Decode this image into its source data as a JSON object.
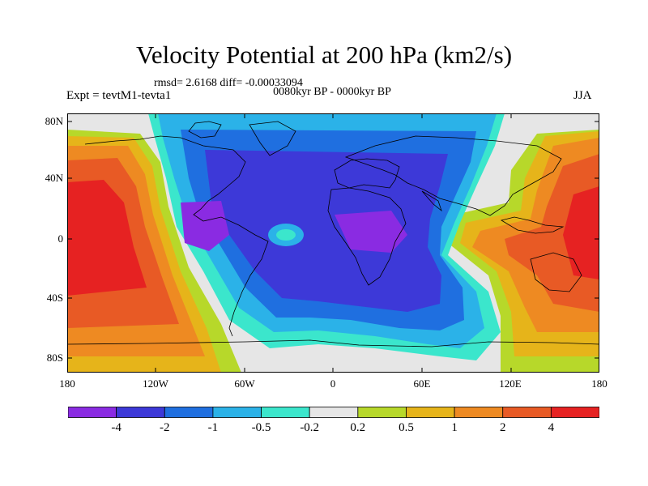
{
  "title": "Velocity Potential at 200 hPa (km2/s)",
  "stats_line": "rmsd= 2.6168 diff= -0.00033094",
  "period": "0080kyr BP - 0000kyr BP",
  "experiment": "Expt = tevtM1-tevta1",
  "season": "JJA",
  "lat_labels": [
    "80N",
    "40N",
    "0",
    "40S",
    "80S"
  ],
  "lon_labels": [
    "180",
    "120W",
    "60W",
    "0",
    "60E",
    "120E",
    "180"
  ],
  "colorbar": {
    "labels": [
      "-4",
      "-2",
      "-1",
      "-0.5",
      "-0.2",
      "0.2",
      "0.5",
      "1",
      "2",
      "4"
    ],
    "colors": [
      "#8a2be2",
      "#3d39d8",
      "#1f6fe0",
      "#2bb2e8",
      "#3be6cc",
      "#e6e6e6",
      "#b7d82a",
      "#e6b41a",
      "#ee8a22",
      "#e85a25",
      "#e62222"
    ]
  }
}
